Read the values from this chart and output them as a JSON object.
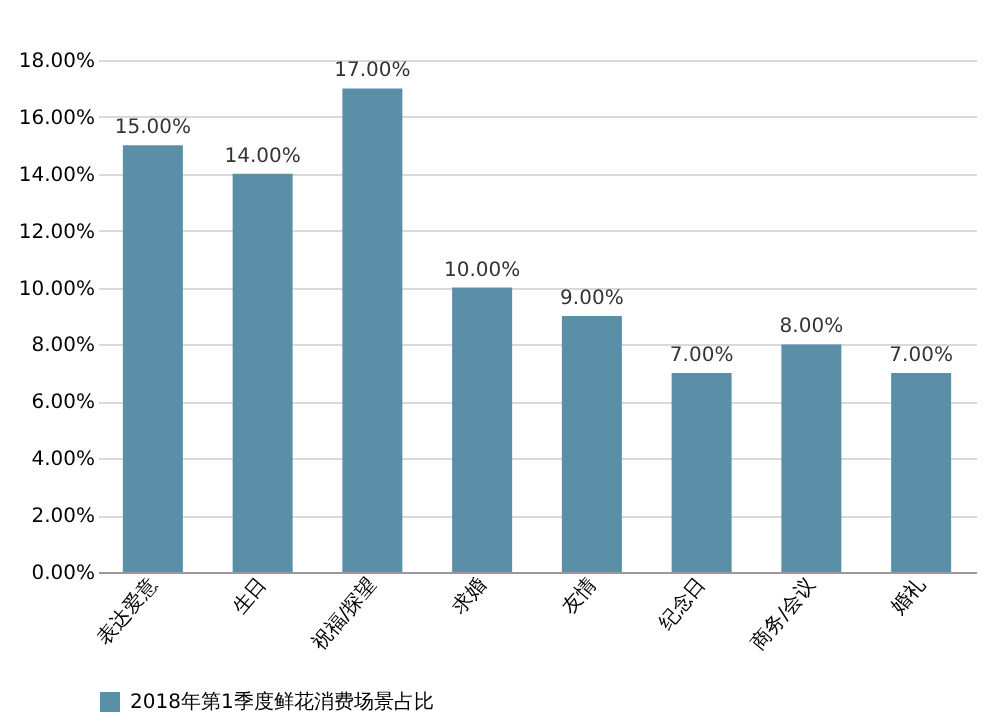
{
  "chart_data": {
    "type": "bar",
    "categories": [
      "表达爱意",
      "生日",
      "祝福/探望",
      "求婚",
      "友情",
      "纪念日",
      "商务/会议",
      "婚礼"
    ],
    "series": [
      {
        "name": "2018年第1季度鲜花消费场景占比",
        "color": "#5b8fa8",
        "values": [
          15,
          14,
          17,
          10,
          9,
          7,
          8,
          7
        ]
      }
    ],
    "value_labels": [
      "15.00%",
      "14.00%",
      "17.00%",
      "10.00%",
      "9.00%",
      "7.00%",
      "8.00%",
      "7.00%"
    ],
    "ylim": [
      0,
      18
    ],
    "yticks": [
      {
        "value": 0,
        "label": "0.00%"
      },
      {
        "value": 2,
        "label": "2.00%"
      },
      {
        "value": 4,
        "label": "4.00%"
      },
      {
        "value": 6,
        "label": "6.00%"
      },
      {
        "value": 8,
        "label": "8.00%"
      },
      {
        "value": 10,
        "label": "10.00%"
      },
      {
        "value": 12,
        "label": "12.00%"
      },
      {
        "value": 14,
        "label": "14.00%"
      },
      {
        "value": 16,
        "label": "16.00%"
      },
      {
        "value": 18,
        "label": "18.00%"
      }
    ],
    "grid": "y",
    "legend": "bottom"
  }
}
